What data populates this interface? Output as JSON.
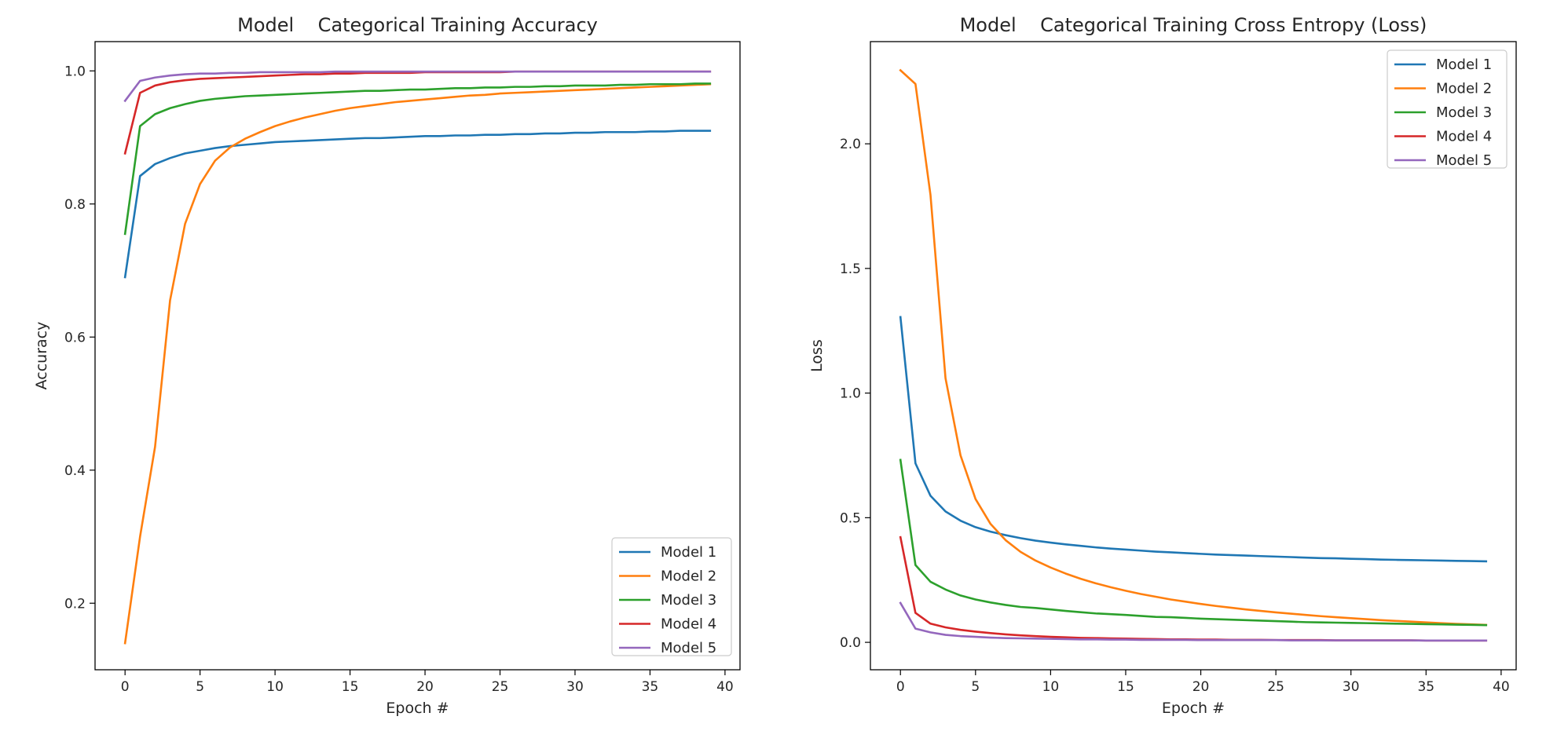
{
  "chart_data": [
    {
      "type": "line",
      "title": "Model    Categorical Training Accuracy",
      "xlabel": "Epoch #",
      "ylabel": "Accuracy",
      "xlim": [
        -2,
        41
      ],
      "ylim": [
        0.1,
        1.044
      ],
      "xticks": [
        0,
        5,
        10,
        15,
        20,
        25,
        30,
        35,
        40
      ],
      "xtick_labels": [
        "0",
        "5",
        "10",
        "15",
        "20",
        "25",
        "30",
        "35",
        "40"
      ],
      "yticks": [
        0.2,
        0.4,
        0.6,
        0.8,
        1.0
      ],
      "ytick_labels": [
        "0.2",
        "0.4",
        "0.6",
        "0.8",
        "1.0"
      ],
      "legend_position": "lower-right",
      "x": [
        0,
        1,
        2,
        3,
        4,
        5,
        6,
        7,
        8,
        9,
        10,
        11,
        12,
        13,
        14,
        15,
        16,
        17,
        18,
        19,
        20,
        21,
        22,
        23,
        24,
        25,
        26,
        27,
        28,
        29,
        30,
        31,
        32,
        33,
        34,
        35,
        36,
        37,
        38,
        39
      ],
      "series": [
        {
          "name": "Model 1",
          "color": "#1f77b4",
          "values": [
            0.69,
            0.842,
            0.86,
            0.869,
            0.876,
            0.88,
            0.884,
            0.887,
            0.889,
            0.891,
            0.893,
            0.894,
            0.895,
            0.896,
            0.897,
            0.898,
            0.899,
            0.899,
            0.9,
            0.901,
            0.902,
            0.902,
            0.903,
            0.903,
            0.904,
            0.904,
            0.905,
            0.905,
            0.906,
            0.906,
            0.907,
            0.907,
            0.908,
            0.908,
            0.908,
            0.909,
            0.909,
            0.91,
            0.91,
            0.91
          ]
        },
        {
          "name": "Model 2",
          "color": "#ff7f0e",
          "values": [
            0.14,
            0.3,
            0.435,
            0.655,
            0.77,
            0.83,
            0.865,
            0.885,
            0.898,
            0.908,
            0.917,
            0.924,
            0.93,
            0.935,
            0.94,
            0.944,
            0.947,
            0.95,
            0.953,
            0.955,
            0.957,
            0.959,
            0.961,
            0.963,
            0.964,
            0.966,
            0.967,
            0.968,
            0.969,
            0.97,
            0.971,
            0.972,
            0.973,
            0.974,
            0.975,
            0.976,
            0.977,
            0.978,
            0.979,
            0.98
          ]
        },
        {
          "name": "Model 3",
          "color": "#2ca02c",
          "values": [
            0.755,
            0.917,
            0.935,
            0.944,
            0.95,
            0.955,
            0.958,
            0.96,
            0.962,
            0.963,
            0.964,
            0.965,
            0.966,
            0.967,
            0.968,
            0.969,
            0.97,
            0.97,
            0.971,
            0.972,
            0.972,
            0.973,
            0.974,
            0.974,
            0.975,
            0.975,
            0.976,
            0.976,
            0.977,
            0.977,
            0.978,
            0.978,
            0.978,
            0.979,
            0.979,
            0.98,
            0.98,
            0.98,
            0.981,
            0.981
          ]
        },
        {
          "name": "Model 4",
          "color": "#d62728",
          "values": [
            0.876,
            0.967,
            0.978,
            0.983,
            0.986,
            0.988,
            0.989,
            0.99,
            0.991,
            0.992,
            0.993,
            0.994,
            0.995,
            0.995,
            0.996,
            0.996,
            0.997,
            0.997,
            0.997,
            0.997,
            0.998,
            0.998,
            0.998,
            0.998,
            0.998,
            0.998,
            0.999,
            0.999,
            0.999,
            0.999,
            0.999,
            0.999,
            0.999,
            0.999,
            0.999,
            0.999,
            0.999,
            0.999,
            0.999,
            0.999
          ]
        },
        {
          "name": "Model 5",
          "color": "#9467bd",
          "values": [
            0.955,
            0.985,
            0.99,
            0.993,
            0.995,
            0.996,
            0.996,
            0.997,
            0.997,
            0.998,
            0.998,
            0.998,
            0.998,
            0.998,
            0.999,
            0.999,
            0.999,
            0.999,
            0.999,
            0.999,
            0.999,
            0.999,
            0.999,
            0.999,
            0.999,
            0.999,
            0.999,
            0.999,
            0.999,
            0.999,
            0.999,
            0.999,
            0.999,
            0.999,
            0.999,
            0.999,
            0.999,
            0.999,
            0.999,
            0.999
          ]
        }
      ]
    },
    {
      "type": "line",
      "title": "Model    Categorical Training Cross Entropy (Loss)",
      "xlabel": "Epoch #",
      "ylabel": "Loss",
      "xlim": [
        -2,
        41
      ],
      "ylim": [
        -0.11,
        2.41
      ],
      "xticks": [
        0,
        5,
        10,
        15,
        20,
        25,
        30,
        35,
        40
      ],
      "xtick_labels": [
        "0",
        "5",
        "10",
        "15",
        "20",
        "25",
        "30",
        "35",
        "40"
      ],
      "yticks": [
        0.0,
        0.5,
        1.0,
        1.5,
        2.0
      ],
      "ytick_labels": [
        "0.0",
        "0.5",
        "1.0",
        "1.5",
        "2.0"
      ],
      "legend_position": "upper-right",
      "x": [
        0,
        1,
        2,
        3,
        4,
        5,
        6,
        7,
        8,
        9,
        10,
        11,
        12,
        13,
        14,
        15,
        16,
        17,
        18,
        19,
        20,
        21,
        22,
        23,
        24,
        25,
        26,
        27,
        28,
        29,
        30,
        31,
        32,
        33,
        34,
        35,
        36,
        37,
        38,
        39
      ],
      "series": [
        {
          "name": "Model 1",
          "color": "#1f77b4",
          "values": [
            1.305,
            0.718,
            0.588,
            0.525,
            0.488,
            0.462,
            0.444,
            0.43,
            0.418,
            0.408,
            0.4,
            0.393,
            0.387,
            0.381,
            0.376,
            0.372,
            0.368,
            0.364,
            0.361,
            0.358,
            0.355,
            0.352,
            0.35,
            0.348,
            0.346,
            0.344,
            0.342,
            0.34,
            0.338,
            0.337,
            0.335,
            0.334,
            0.332,
            0.331,
            0.33,
            0.329,
            0.328,
            0.327,
            0.326,
            0.325
          ]
        },
        {
          "name": "Model 2",
          "color": "#ff7f0e",
          "values": [
            2.295,
            2.24,
            1.795,
            1.06,
            0.75,
            0.575,
            0.475,
            0.41,
            0.363,
            0.328,
            0.3,
            0.276,
            0.255,
            0.237,
            0.221,
            0.207,
            0.194,
            0.183,
            0.172,
            0.163,
            0.154,
            0.146,
            0.139,
            0.132,
            0.126,
            0.12,
            0.115,
            0.11,
            0.105,
            0.101,
            0.097,
            0.093,
            0.089,
            0.086,
            0.083,
            0.08,
            0.077,
            0.074,
            0.072,
            0.07
          ]
        },
        {
          "name": "Model 3",
          "color": "#2ca02c",
          "values": [
            0.732,
            0.31,
            0.243,
            0.212,
            0.188,
            0.172,
            0.16,
            0.15,
            0.142,
            0.138,
            0.132,
            0.126,
            0.121,
            0.116,
            0.113,
            0.11,
            0.106,
            0.102,
            0.101,
            0.098,
            0.095,
            0.093,
            0.091,
            0.089,
            0.087,
            0.085,
            0.083,
            0.081,
            0.08,
            0.079,
            0.078,
            0.077,
            0.076,
            0.075,
            0.074,
            0.073,
            0.072,
            0.071,
            0.07,
            0.069
          ]
        },
        {
          "name": "Model 4",
          "color": "#d62728",
          "values": [
            0.422,
            0.118,
            0.075,
            0.06,
            0.05,
            0.043,
            0.037,
            0.032,
            0.028,
            0.025,
            0.022,
            0.02,
            0.018,
            0.017,
            0.016,
            0.015,
            0.014,
            0.013,
            0.012,
            0.012,
            0.011,
            0.011,
            0.01,
            0.01,
            0.01,
            0.009,
            0.009,
            0.009,
            0.009,
            0.008,
            0.008,
            0.008,
            0.008,
            0.008,
            0.008,
            0.007,
            0.007,
            0.007,
            0.007,
            0.007
          ]
        },
        {
          "name": "Model 5",
          "color": "#9467bd",
          "values": [
            0.158,
            0.055,
            0.04,
            0.03,
            0.025,
            0.022,
            0.019,
            0.017,
            0.016,
            0.015,
            0.014,
            0.013,
            0.012,
            0.012,
            0.011,
            0.011,
            0.01,
            0.01,
            0.01,
            0.01,
            0.009,
            0.009,
            0.009,
            0.009,
            0.009,
            0.009,
            0.008,
            0.008,
            0.008,
            0.008,
            0.008,
            0.008,
            0.008,
            0.008,
            0.008,
            0.007,
            0.007,
            0.007,
            0.007,
            0.007
          ]
        }
      ]
    }
  ]
}
